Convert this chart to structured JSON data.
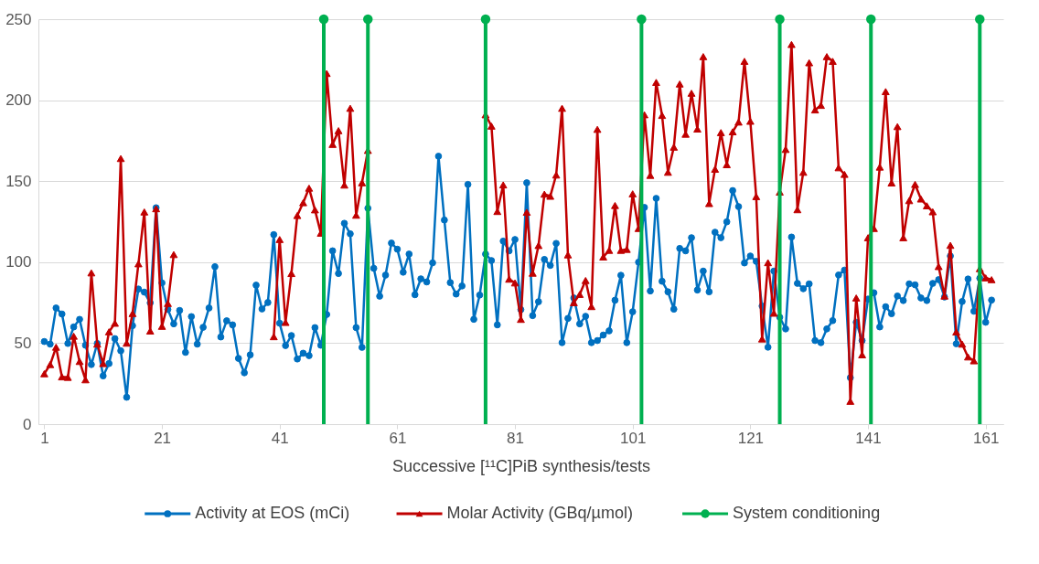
{
  "chart_data": {
    "type": "line",
    "xlabel": "Successive [¹¹C]PiB synthesis/tests",
    "x": [
      1,
      2,
      3,
      4,
      5,
      6,
      7,
      8,
      9,
      10,
      11,
      12,
      13,
      14,
      15,
      16,
      17,
      18,
      19,
      20,
      21,
      22,
      23,
      24,
      25,
      26,
      27,
      28,
      29,
      30,
      31,
      32,
      33,
      34,
      35,
      36,
      37,
      38,
      39,
      40,
      41,
      42,
      43,
      44,
      45,
      46,
      47,
      48,
      49,
      50,
      51,
      52,
      53,
      54,
      55,
      56,
      57,
      58,
      59,
      60,
      61,
      62,
      63,
      64,
      65,
      66,
      67,
      68,
      69,
      70,
      71,
      72,
      73,
      74,
      75,
      76,
      77,
      78,
      79,
      80,
      81,
      82,
      83,
      84,
      85,
      86,
      87,
      88,
      89,
      90,
      91,
      92,
      93,
      94,
      95,
      96,
      97,
      98,
      99,
      100,
      101,
      102,
      103,
      104,
      105,
      106,
      107,
      108,
      109,
      110,
      111,
      112,
      113,
      114,
      115,
      116,
      117,
      118,
      119,
      120,
      121,
      122,
      123,
      124,
      125,
      126,
      127,
      128,
      129,
      130,
      131,
      132,
      133,
      134,
      135,
      136,
      137,
      138,
      139,
      140,
      141,
      142,
      143,
      144,
      145,
      146,
      147,
      148,
      149,
      150,
      151,
      152,
      153,
      154,
      155,
      156,
      157,
      158,
      159,
      160,
      161,
      162
    ],
    "xlim": [
      0,
      164
    ],
    "xticks": [
      1,
      21,
      41,
      61,
      81,
      101,
      121,
      141,
      161
    ],
    "ylim": [
      0,
      250
    ],
    "yticks": [
      0,
      50,
      100,
      150,
      200,
      250
    ],
    "grid": "y",
    "legend": "bottom",
    "series": [
      {
        "name": "Activity at EOS (mCi)",
        "marker": "circle",
        "color": "#0070c0",
        "values": [
          51,
          49.4,
          71.7,
          68,
          49.8,
          60,
          64.7,
          48.7,
          36.8,
          49.8,
          29.8,
          37.4,
          52.8,
          45.3,
          16.6,
          60.8,
          83.4,
          81.5,
          74.9,
          133.6,
          87.2,
          70.8,
          61.9,
          70.2,
          44.3,
          66.4,
          49.4,
          59.8,
          71.7,
          97.2,
          53.8,
          63.8,
          61.3,
          40.6,
          31.7,
          42.8,
          85.8,
          71.1,
          75.1,
          117,
          62.3,
          48.5,
          54.7,
          40.2,
          43.8,
          42.3,
          59.6,
          48.7,
          67.7,
          107,
          93,
          124,
          117.5,
          59.6,
          47.4,
          133.3,
          96.2,
          79,
          92,
          111.8,
          108,
          93.8,
          105,
          79.9,
          89.7,
          87.8,
          99.6,
          165.4,
          126,
          87.4,
          80.3,
          85.3,
          148,
          64.7,
          79.7,
          105,
          101,
          61.3,
          113,
          107,
          114,
          70.7,
          149,
          67,
          75.6,
          101.7,
          98,
          111.6,
          50.3,
          65.3,
          77.9,
          61.9,
          66.6,
          50.3,
          51.6,
          55,
          57.6,
          76.5,
          91.9,
          50.3,
          69.4,
          100,
          133.8,
          82.2,
          139.4,
          88.2,
          81.7,
          71,
          108.5,
          107,
          115.1,
          82.8,
          94.5,
          81.7,
          118.5,
          115.1,
          124.9,
          144.2,
          134.3,
          99.5,
          103.8,
          100.5,
          72.9,
          47.5,
          94.5,
          66,
          58.8,
          115.5,
          86.9,
          83.6,
          86.6,
          51.6,
          50.3,
          58.8,
          63.9,
          92.1,
          95.1,
          28.7,
          62.9,
          51.6,
          77.2,
          81.1,
          60,
          72.5,
          68.2,
          79.1,
          76.3,
          86.6,
          86,
          77.9,
          76.3,
          86.9,
          89.2,
          78.5,
          103.8,
          49.6,
          75.7,
          89.6,
          69.7,
          90.1,
          62.9,
          76.6
        ]
      },
      {
        "name": "Molar Activity (GBq/µmol)",
        "marker": "triangle",
        "color": "#c00000",
        "values": [
          31.1,
          36.8,
          47.5,
          29.2,
          28.9,
          54.3,
          38.7,
          27.4,
          93.4,
          49.4,
          37.4,
          57,
          62.3,
          164,
          50,
          68.3,
          99,
          131,
          57.5,
          133,
          60.4,
          74.5,
          104.7,
          null,
          null,
          null,
          null,
          null,
          null,
          null,
          null,
          null,
          null,
          null,
          null,
          null,
          null,
          null,
          null,
          54,
          114,
          62.8,
          93,
          128.8,
          136.7,
          145.7,
          132.3,
          117.9,
          216.5,
          172.7,
          181.2,
          147.6,
          195,
          129,
          149,
          169,
          null,
          null,
          null,
          null,
          null,
          null,
          null,
          null,
          null,
          null,
          null,
          null,
          null,
          null,
          null,
          null,
          null,
          null,
          null,
          191,
          184,
          131.3,
          147.7,
          89.5,
          87.2,
          64.7,
          130.8,
          93.2,
          110.3,
          142,
          140.7,
          153.8,
          195,
          104.5,
          75,
          80.1,
          88.7,
          72.6,
          182,
          103.2,
          107.3,
          135,
          107.3,
          107.9,
          142.2,
          120.8,
          191,
          153.6,
          211,
          190.6,
          155.5,
          171,
          210,
          179,
          204.3,
          182.2,
          226.9,
          136.2,
          157.4,
          180,
          160.2,
          180.5,
          186.5,
          224,
          187,
          140.5,
          52.6,
          99.7,
          68.5,
          143.3,
          169.6,
          234.4,
          132.4,
          155.5,
          223.1,
          194,
          196.8,
          226.9,
          224,
          158.3,
          154.2,
          14.1,
          77.9,
          42.8,
          115.1,
          120.8,
          158.7,
          205.3,
          148.9,
          183.7,
          115.1,
          138,
          148,
          139,
          134.8,
          131.1,
          97.3,
          79.1,
          110.4,
          56.9,
          49.4,
          41.5,
          39.1,
          96,
          90.3,
          89.2
        ]
      },
      {
        "name": "System conditioning",
        "type": "scatter",
        "marker": "circle",
        "color": "#00b050",
        "x": [
          48.5,
          56,
          76,
          102.5,
          126,
          141.5,
          160
        ],
        "values": [
          250,
          250,
          250,
          250,
          250,
          250,
          250
        ],
        "errors": [
          [
            0,
            250
          ],
          [
            0,
            250
          ],
          [
            0,
            250
          ],
          [
            0,
            250
          ],
          [
            0,
            250
          ],
          [
            0,
            250
          ],
          [
            0,
            250
          ]
        ]
      }
    ]
  }
}
